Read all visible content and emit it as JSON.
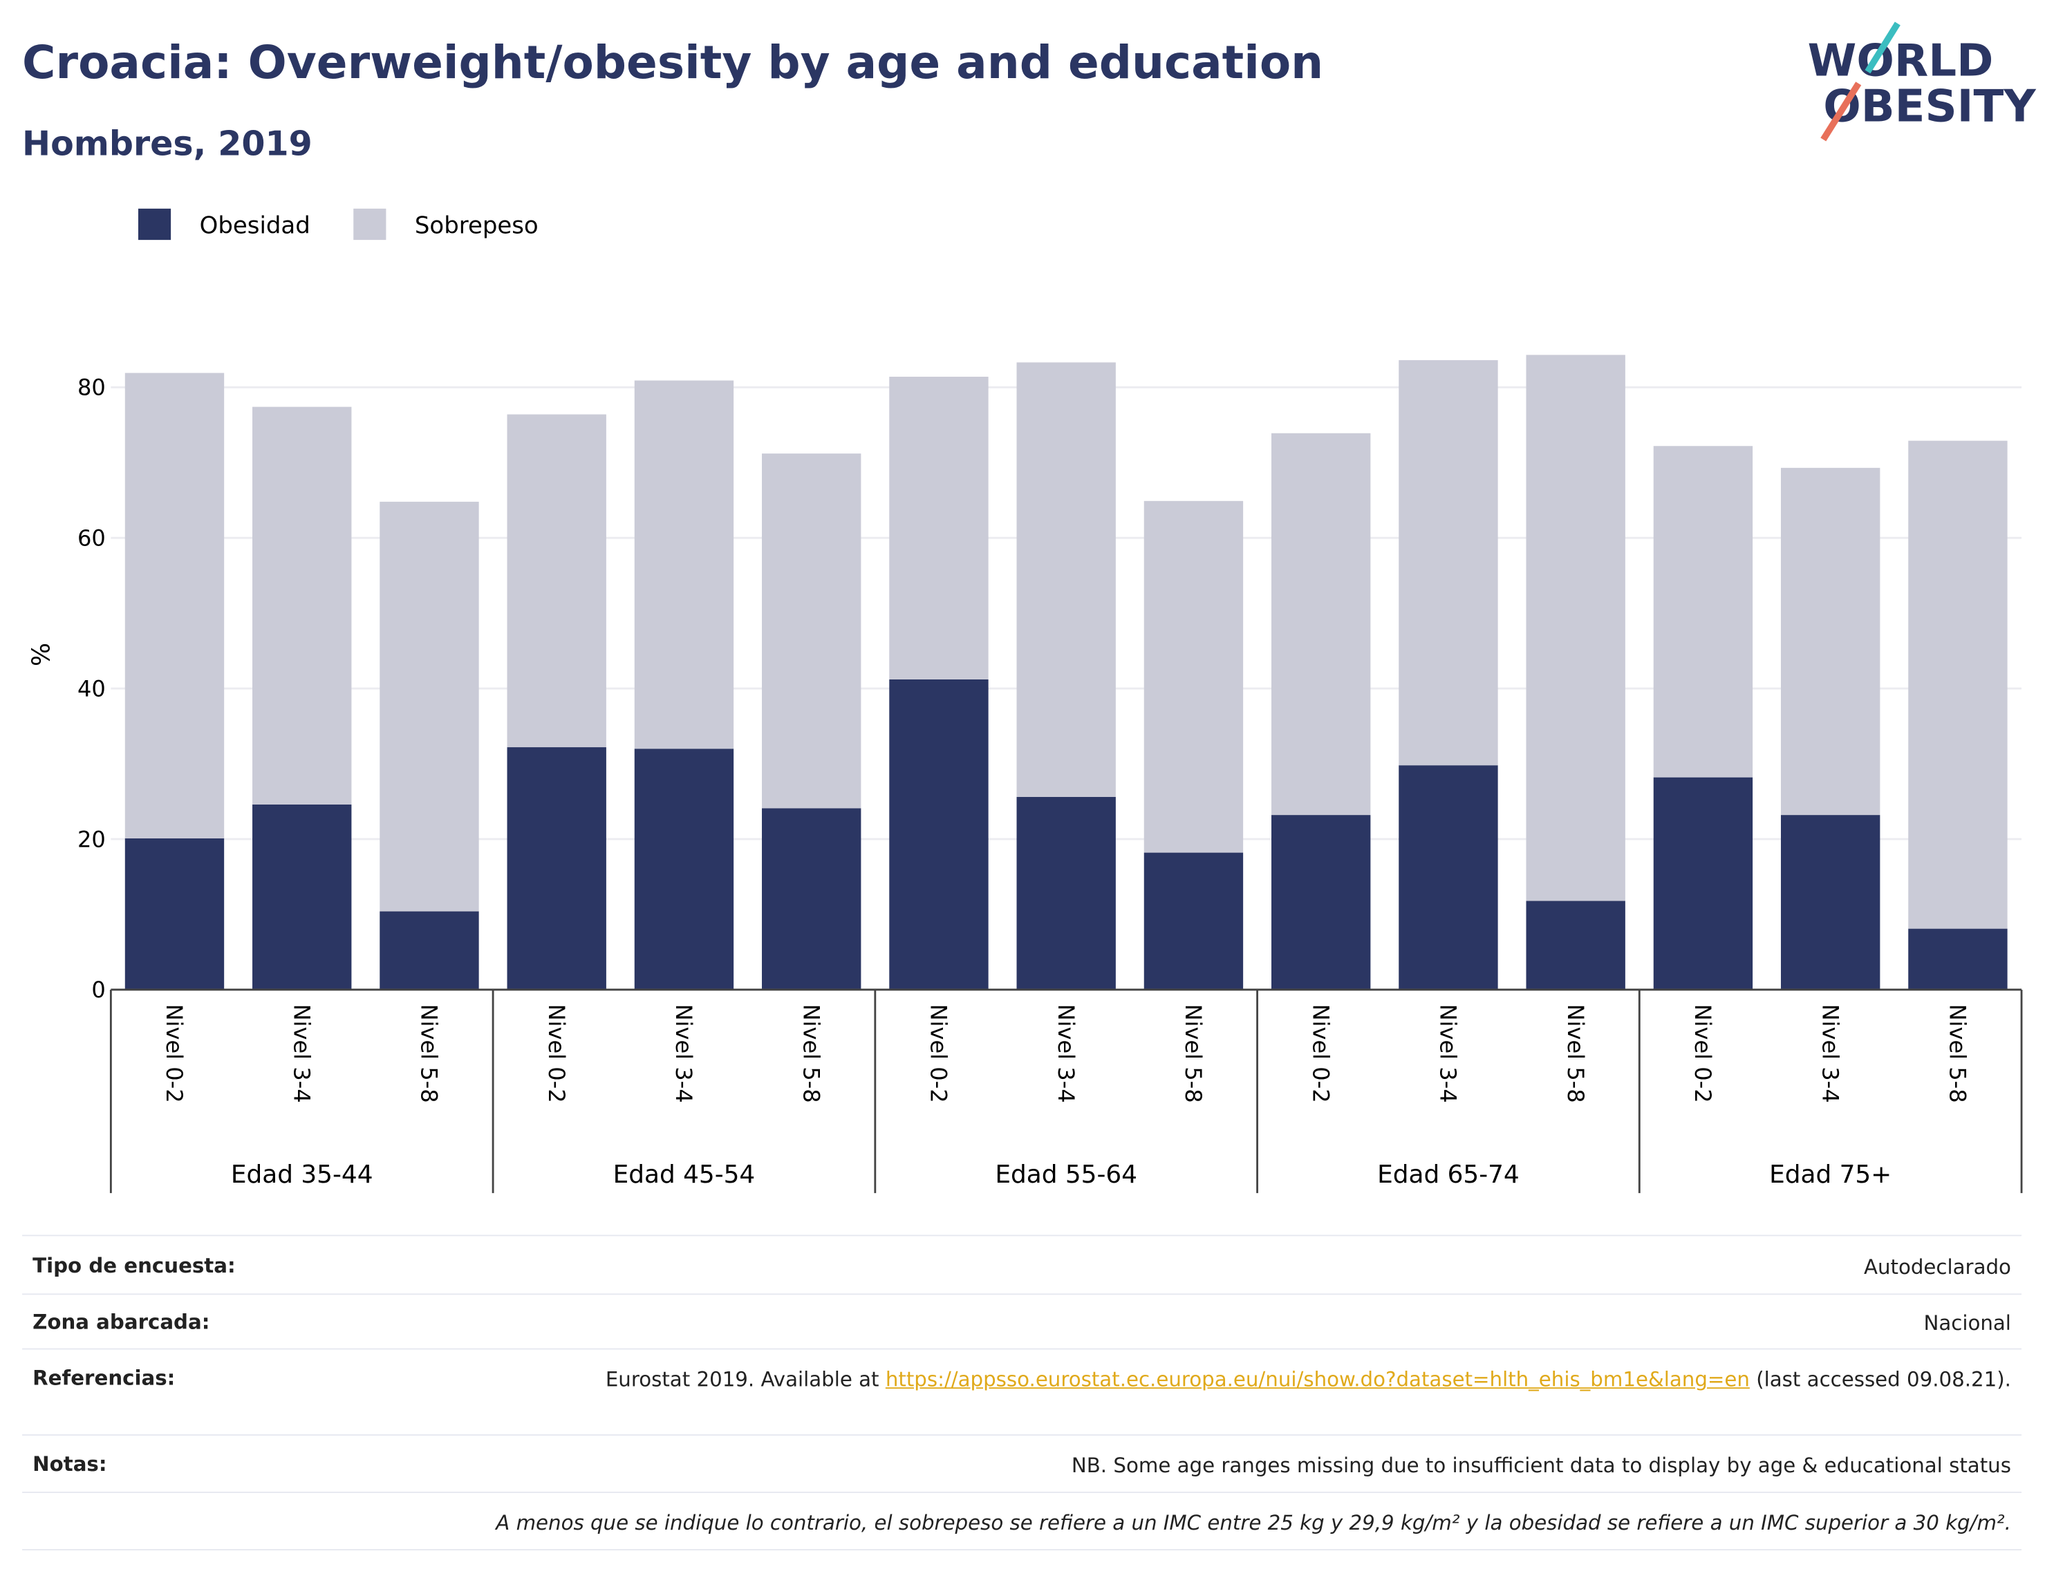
{
  "chart_data": {
    "type": "stacked-bar",
    "title": "Croacia: Overweight/obesity by age and education",
    "subtitle": "Hombres, 2019",
    "y_label": "%",
    "categories": [
      "Nivel 0-2",
      "Nivel 3-4",
      "Nivel 5-8",
      "Nivel 0-2",
      "Nivel 3-4",
      "Nivel 5-8",
      "Nivel 0-2",
      "Nivel 3-4",
      "Nivel 5-8",
      "Nivel 0-2",
      "Nivel 3-4",
      "Nivel 5-8",
      "Nivel 0-2",
      "Nivel 3-4",
      "Nivel 5-8"
    ],
    "groups": [
      "Edad 35-44",
      "Edad 45-54",
      "Edad 55-64",
      "Edad 65-74",
      "Edad 75+"
    ],
    "series": [
      {
        "name": "Obesidad",
        "color": "#2b3663",
        "values": [
          20.1,
          24.6,
          10.4,
          32.2,
          32.0,
          24.1,
          41.2,
          25.6,
          18.2,
          23.2,
          29.8,
          11.8,
          28.2,
          23.2,
          8.1
        ]
      },
      {
        "name": "Sobrepeso",
        "color": "#cacbd7",
        "values": [
          61.8,
          52.8,
          54.4,
          44.2,
          48.9,
          47.1,
          40.2,
          57.7,
          46.7,
          50.7,
          53.8,
          72.5,
          44.0,
          46.1,
          64.8
        ]
      }
    ],
    "ylim": [
      0,
      90
    ],
    "yticks": [
      0,
      20,
      40,
      60,
      80
    ],
    "grid": true,
    "legend": "top-left"
  },
  "logo": {
    "line1": "WORLD",
    "line2": "OBESITY"
  },
  "footer": {
    "rows": [
      {
        "label": "Tipo de encuesta:",
        "value": "Autodeclarado"
      },
      {
        "label": "Zona abarcada:",
        "value": "Nacional"
      },
      {
        "label": "Referencias:",
        "value_before": "Eurostat 2019. Available at ",
        "link": "https://appsso.eurostat.ec.europa.eu/nui/show.do?dataset=hlth_ehis_bm1e&lang=en",
        "value_after": " (last accessed 09.08.21)."
      },
      {
        "label": "Notas:",
        "value": "NB. Some age ranges missing due to insufficient data to display by age & educational status"
      }
    ],
    "note": "A menos que se indique lo contrario, el sobrepeso se refiere a un IMC entre 25 kg y 29,9 kg/m² y la obesidad se refiere a un IMC superior a 30 kg/m²."
  }
}
